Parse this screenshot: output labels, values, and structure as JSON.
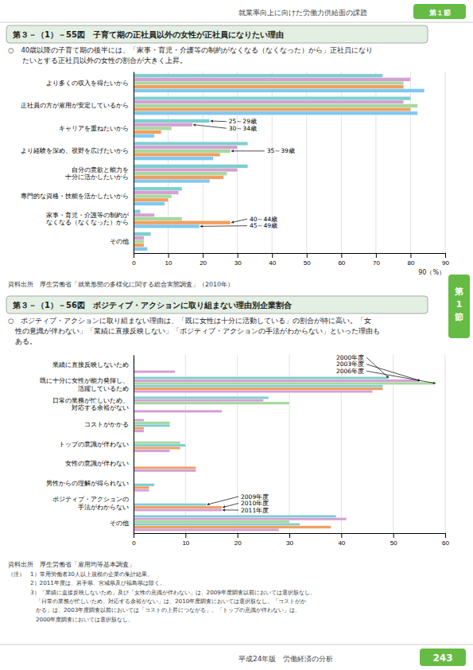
{
  "page": {
    "title": "就業率向上に向けた労働力供給面の課題",
    "section": "第１節",
    "footer": "平成24年版　労働経済の分析",
    "number": "243",
    "tab": "第1節"
  },
  "chart_data": [
    {
      "type": "bar",
      "orientation": "horizontal",
      "grid": true,
      "title": "第３－（1）－55図　子育て期の正社員以外の女性が正社員になりたい理由",
      "subtitle": "○　40歳以降の子育て期の後半には、「家事・育児・介護等の制約がなくなる（なくなった）から」正社員になり\n　　たいとする正社員以外の女性の割合が大きく上昇。",
      "source": "資料出所　厚生労働省「就業形態の多様化に関する総合実態調査」（2010年）",
      "xlabel": "90（%）",
      "xlim": [
        0,
        90
      ],
      "xticks": [
        0,
        10,
        20,
        30,
        40,
        50,
        60,
        70,
        80,
        90
      ],
      "categories": [
        "より多くの収入を得たいから",
        "正社員の方が雇用が安定しているから",
        "キャリアを重ねたいから",
        "より経験を深め、視野を広げたいから",
        "自分の意欲と能力を\n十分に活かしたいから",
        "専門的な資格・技能を活かしたいから",
        "家事・育児・介護等の制約が\nなくなる（なくなった）から",
        "その他"
      ],
      "series": [
        {
          "name": "25～29歳",
          "color": "#7ecece",
          "values": [
            72.0,
            80.0,
            22.0,
            33.0,
            33.0,
            14.0,
            2.0,
            5.0
          ]
        },
        {
          "name": "30～34歳",
          "color": "#d4a0d4",
          "values": [
            80.0,
            78.0,
            17.0,
            30.0,
            30.0,
            13.0,
            6.0,
            3.0
          ]
        },
        {
          "name": "35～39歳",
          "color": "#a8d8a0",
          "values": [
            78.0,
            82.0,
            11.0,
            28.0,
            27.0,
            11.0,
            14.0,
            3.0
          ]
        },
        {
          "name": "40～44歳",
          "color": "#f0a060",
          "values": [
            78.0,
            80.0,
            8.0,
            25.0,
            26.0,
            10.0,
            28.0,
            3.0
          ]
        },
        {
          "name": "45～49歳",
          "color": "#80c8f0",
          "values": [
            84.0,
            82.0,
            6.0,
            23.0,
            22.0,
            9.0,
            19.0,
            4.0
          ]
        }
      ],
      "annotations": [
        {
          "text": "25～29歳",
          "category": "キャリアを重ねたいから",
          "series": "25～29歳"
        },
        {
          "text": "30～34歳",
          "category": "キャリアを重ねたいから",
          "series": "30～34歳"
        },
        {
          "text": "35～39歳",
          "category": "より経験を深め、視野を広げたいから",
          "series": "35～39歳"
        },
        {
          "text": "40～44歳",
          "category": "家事・育児・介護等の制約が\nなくなる（なくなった）から",
          "series": "40～44歳"
        },
        {
          "text": "45～49歳",
          "category": "家事・育児・介護等の制約が\nなくなる（なくなった）から",
          "series": "45～49歳"
        }
      ]
    },
    {
      "type": "bar",
      "orientation": "horizontal",
      "grid": true,
      "title": "第３－（1）－56図　ポジティブ・アクションに取り組まない理由別企業割合",
      "subtitle": "○　ポジティブ・アクションに取り組まない理由は、「既に女性は十分に活動している」の割合が特に高い。「女\n　性の意識が伴わない」「業績に直接反映しない」「ポジティブ・アクションの手法がわからない」といった理由も\n　ある。",
      "source": "資料出所　厚生労働省「雇用均等基本調査」",
      "notes": "（注）　1）常用労働者30人以上規模の企業の集計結果。\n　　　　2）2011年度は、岩手県、宮城県及び福島県は除く。\n　　　　3）「業績に直接反映しないため」及び「女性の意識が伴わない」は、2009年度調査以前においては選択肢なし。\n　　　　　「日常の業務が忙しいため、対応する余裕がない」は、2010年度調査においては選択肢なし。「コストがか\n　　　　　かる」は、2003年度調査以前においては「コストの上昇につながる」。「トップの意識が伴わない」は、\n　　　　　2000年度調査においては選択肢なし。",
      "xlim": [
        0,
        60
      ],
      "xticks": [
        0,
        10,
        20,
        30,
        40,
        50,
        60
      ],
      "categories": [
        "業績に直接反映しないため",
        "既に十分に女性が能力発揮し、\n活躍しているため",
        "日常の業務が忙しいため、\n対応する余裕がない",
        "コストがかかる",
        "トップの意識が伴わない",
        "女性の意識が伴わない",
        "男性からの理解が得られない",
        "ポジティブ・アクションの\n手法がわからない",
        "その他"
      ],
      "series": [
        {
          "name": "2000年度",
          "color": "#7ecece",
          "values": [
            null,
            49.0,
            26.0,
            null,
            null,
            null,
            null,
            null,
            39.0
          ]
        },
        {
          "name": "2003年度",
          "color": "#d4a0d4",
          "values": [
            null,
            55.0,
            25.0,
            2.0,
            null,
            null,
            null,
            null,
            41.0
          ]
        },
        {
          "name": "2006年度",
          "color": "#a8d8a0",
          "values": [
            null,
            58.0,
            30.0,
            7.0,
            9.0,
            null,
            null,
            null,
            30.0
          ]
        },
        {
          "name": "2009年度",
          "color": "#7ecece",
          "values": [
            null,
            48.0,
            null,
            7.0,
            10.0,
            null,
            4.0,
            14.0,
            32.0
          ]
        },
        {
          "name": "2010年度",
          "color": "#f0a060",
          "values": [
            null,
            48.0,
            null,
            2.0,
            9.0,
            12.0,
            3.0,
            17.0,
            38.0
          ]
        },
        {
          "name": "2011年度",
          "color": "#d4a0d4",
          "values": [
            8.0,
            46.0,
            17.0,
            2.0,
            7.0,
            12.0,
            3.0,
            17.0,
            28.0
          ]
        }
      ],
      "annotations": [
        {
          "text": "2000年度",
          "category": "既に十分に女性が能力発揮し、\n活躍しているため",
          "series": "2000年度"
        },
        {
          "text": "2003年度",
          "category": "既に十分に女性が能力発揮し、\n活躍しているため",
          "series": "2003年度"
        },
        {
          "text": "2006年度",
          "category": "既に十分に女性が能力発揮し、\n活躍しているため",
          "series": "2006年度"
        },
        {
          "text": "2009年度",
          "category": "ポジティブ・アクションの\n手法がわからない",
          "series": "2009年度"
        },
        {
          "text": "2010年度",
          "category": "ポジティブ・アクションの\n手法がわからない",
          "series": "2010年度"
        },
        {
          "text": "2011年度",
          "category": "ポジティブ・アクションの\n手法がわからない",
          "series": "2011年度"
        }
      ]
    }
  ]
}
